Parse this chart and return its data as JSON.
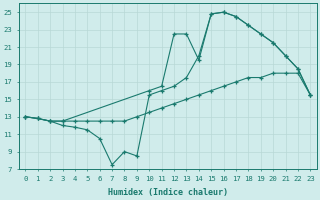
{
  "line1_x": [
    0,
    1,
    2,
    3,
    10,
    11,
    12,
    13,
    14,
    15,
    16,
    17,
    18,
    19,
    20,
    21,
    22,
    23
  ],
  "line1_y": [
    13,
    12.8,
    12.5,
    12.5,
    16,
    16.5,
    22.5,
    22.5,
    19.5,
    24.8,
    25,
    24.5,
    23.5,
    22.5,
    21.5,
    20,
    18.5,
    15.5
  ],
  "line2_x": [
    0,
    1,
    2,
    3,
    4,
    5,
    6,
    7,
    8,
    9,
    10,
    11,
    12,
    13,
    14,
    15,
    16,
    17,
    18,
    19,
    20,
    21,
    22,
    23
  ],
  "line2_y": [
    13,
    12.8,
    12.5,
    12.5,
    12.5,
    12.5,
    12.5,
    12.5,
    12.5,
    13.0,
    13.5,
    14.0,
    14.5,
    15.0,
    15.5,
    16.0,
    16.5,
    17.0,
    17.5,
    17.5,
    18.0,
    18.0,
    18.0,
    15.5
  ],
  "line3_x": [
    0,
    1,
    2,
    3,
    4,
    5,
    6,
    7,
    8,
    9,
    10,
    11,
    12,
    13,
    14,
    15,
    16,
    17,
    18,
    19,
    20,
    21,
    22,
    23
  ],
  "line3_y": [
    13,
    12.8,
    12.5,
    12.0,
    11.8,
    11.5,
    10.5,
    7.5,
    9.0,
    8.5,
    15.5,
    16.0,
    16.5,
    17.5,
    20.0,
    24.8,
    25.0,
    24.5,
    23.5,
    22.5,
    21.5,
    20.0,
    18.5,
    15.5
  ],
  "color": "#1a7a6e",
  "bg_color": "#d0eceb",
  "grid_color": "#b8d8d6",
  "xlabel": "Humidex (Indice chaleur)",
  "xlim": [
    -0.5,
    23.5
  ],
  "ylim": [
    7,
    26
  ],
  "yticks": [
    7,
    9,
    11,
    13,
    15,
    17,
    19,
    21,
    23,
    25
  ],
  "xticks": [
    0,
    1,
    2,
    3,
    4,
    5,
    6,
    7,
    8,
    9,
    10,
    11,
    12,
    13,
    14,
    15,
    16,
    17,
    18,
    19,
    20,
    21,
    22,
    23
  ],
  "xtick_labels": [
    "0",
    "1",
    "2",
    "3",
    "4",
    "5",
    "6",
    "7",
    "8",
    "9",
    "10",
    "11",
    "12",
    "13",
    "14",
    "15",
    "16",
    "17",
    "18",
    "19",
    "20",
    "21",
    "22",
    "23"
  ],
  "label_fontsize": 6.0,
  "tick_fontsize": 5.2
}
